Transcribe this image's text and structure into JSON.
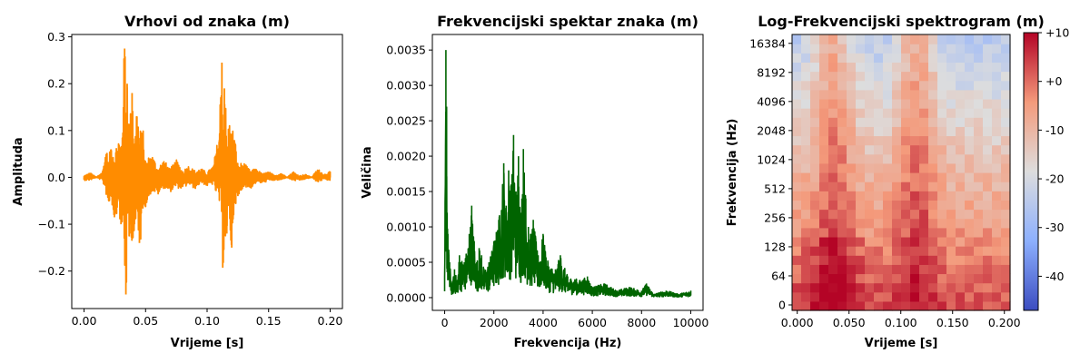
{
  "chart_data": [
    {
      "type": "line",
      "title": "Vrhovi od znaka (m)",
      "xlabel": "Vrijeme [s]",
      "ylabel": "Amplituda",
      "xlim": [
        -0.01,
        0.21
      ],
      "ylim": [
        -0.28,
        0.305
      ],
      "x_ticks": [
        0.0,
        0.05,
        0.1,
        0.15,
        0.2
      ],
      "x_tick_labels": [
        "0.00",
        "0.05",
        "0.10",
        "0.15",
        "0.20"
      ],
      "y_ticks": [
        -0.2,
        -0.1,
        0.0,
        0.1,
        0.2,
        0.3
      ],
      "y_tick_labels": [
        "−0.2",
        "−0.1",
        "0.0",
        "0.1",
        "0.2",
        "0.3"
      ],
      "color": "#ff8c00",
      "series": [
        {
          "x": [
            0.0,
            0.005,
            0.01,
            0.015,
            0.018,
            0.02,
            0.022,
            0.025,
            0.028,
            0.03,
            0.032,
            0.033,
            0.034,
            0.035,
            0.037,
            0.039,
            0.041,
            0.043,
            0.045,
            0.048,
            0.05,
            0.055,
            0.06,
            0.065,
            0.07,
            0.075,
            0.08,
            0.085,
            0.09,
            0.095,
            0.1,
            0.105,
            0.11,
            0.112,
            0.113,
            0.114,
            0.116,
            0.118,
            0.12,
            0.122,
            0.125,
            0.13,
            0.135,
            0.14,
            0.145,
            0.15,
            0.155,
            0.16,
            0.165,
            0.17,
            0.175,
            0.18,
            0.185,
            0.19,
            0.195,
            0.2
          ],
          "y": [
            -0.005,
            0.008,
            0.0,
            0.01,
            0.05,
            -0.05,
            0.06,
            -0.08,
            0.07,
            -0.1,
            0.15,
            0.275,
            -0.25,
            0.2,
            -0.12,
            0.18,
            -0.1,
            0.13,
            -0.14,
            0.08,
            -0.05,
            0.04,
            -0.03,
            0.03,
            -0.025,
            0.03,
            -0.02,
            0.02,
            -0.02,
            0.015,
            -0.015,
            0.02,
            0.08,
            0.245,
            -0.16,
            0.19,
            -0.12,
            0.1,
            -0.15,
            0.08,
            -0.04,
            0.025,
            -0.02,
            0.015,
            -0.01,
            0.01,
            -0.005,
            0.008,
            0.0,
            0.01,
            -0.005,
            0.005,
            0.0,
            0.015,
            0.005,
            0.01
          ]
        }
      ]
    },
    {
      "type": "line",
      "title": "Frekvencijski spektar znaka (m)",
      "xlabel": "Frekvencija (Hz)",
      "ylabel": "Veličina",
      "xlim": [
        -500,
        10500
      ],
      "ylim": [
        -0.00018,
        0.00372
      ],
      "x_ticks": [
        0,
        2000,
        4000,
        6000,
        8000,
        10000
      ],
      "x_tick_labels": [
        "0",
        "2000",
        "4000",
        "6000",
        "8000",
        "10000"
      ],
      "y_ticks": [
        0.0,
        0.0005,
        0.001,
        0.0015,
        0.002,
        0.0025,
        0.003,
        0.0035
      ],
      "y_tick_labels": [
        "0.0000",
        "0.0005",
        "0.0010",
        "0.0015",
        "0.0020",
        "0.0025",
        "0.0030",
        "0.0035"
      ],
      "color": "#006400",
      "series": [
        {
          "x": [
            0,
            50,
            80,
            100,
            130,
            200,
            300,
            400,
            500,
            600,
            800,
            1000,
            1100,
            1200,
            1300,
            1400,
            1500,
            1600,
            1800,
            2000,
            2200,
            2400,
            2500,
            2600,
            2700,
            2800,
            2900,
            3000,
            3100,
            3200,
            3300,
            3400,
            3500,
            3600,
            3800,
            4000,
            4200,
            4500,
            4700,
            5000,
            5500,
            5800,
            6000,
            6500,
            7000,
            7500,
            8000,
            8200,
            8500,
            9000,
            9500,
            10000
          ],
          "y": [
            0.0003,
            0.0035,
            0.0027,
            0.0012,
            0.0009,
            0.0005,
            0.0002,
            0.0004,
            0.00025,
            0.0006,
            0.0005,
            0.0009,
            0.0013,
            0.0008,
            0.0005,
            0.0007,
            0.0006,
            0.0004,
            0.0005,
            0.0008,
            0.0011,
            0.0019,
            0.0013,
            0.0018,
            0.0016,
            0.0023,
            0.0015,
            0.002,
            0.0012,
            0.0021,
            0.0014,
            0.001,
            0.0009,
            0.0011,
            0.0006,
            0.0009,
            0.0005,
            0.0004,
            0.0006,
            0.0003,
            0.00025,
            0.0003,
            0.00015,
            0.0002,
            0.0001,
            0.00015,
            0.0001,
            0.0002,
            5e-05,
            0.0001,
            5e-05,
            0.0001
          ]
        }
      ]
    },
    {
      "type": "heatmap",
      "title": "Log-Frekvencijski spektrogram (m)",
      "xlabel": "Vrijeme [s]",
      "ylabel": "Frekvencija (Hz)",
      "xlim": [
        -0.005,
        0.2055
      ],
      "x_ticks": [
        0.0,
        0.05,
        0.1,
        0.15,
        0.2
      ],
      "x_tick_labels": [
        "0.000",
        "0.050",
        "0.100",
        "0.150",
        "0.200"
      ],
      "y_scale": "log2",
      "y_ticks": [
        0,
        64,
        128,
        256,
        512,
        1024,
        2048,
        4096,
        8192,
        16384
      ],
      "y_tick_labels": [
        "0",
        "64",
        "128",
        "256",
        "512",
        "1024",
        "2048",
        "4096",
        "8192",
        "16384"
      ],
      "colorbar": {
        "colormap": "coolwarm",
        "range": [
          -47,
          10
        ],
        "ticks": [
          10,
          0,
          -10,
          -20,
          -30,
          -40
        ],
        "tick_labels": [
          "+10",
          "+0",
          "-10",
          "-20",
          "-30",
          "-40"
        ]
      },
      "time_bins": 24,
      "freq_bins": 30,
      "feature_times": [
        0.035,
        0.115
      ],
      "low_freq_peak_time": 0.035
    }
  ]
}
